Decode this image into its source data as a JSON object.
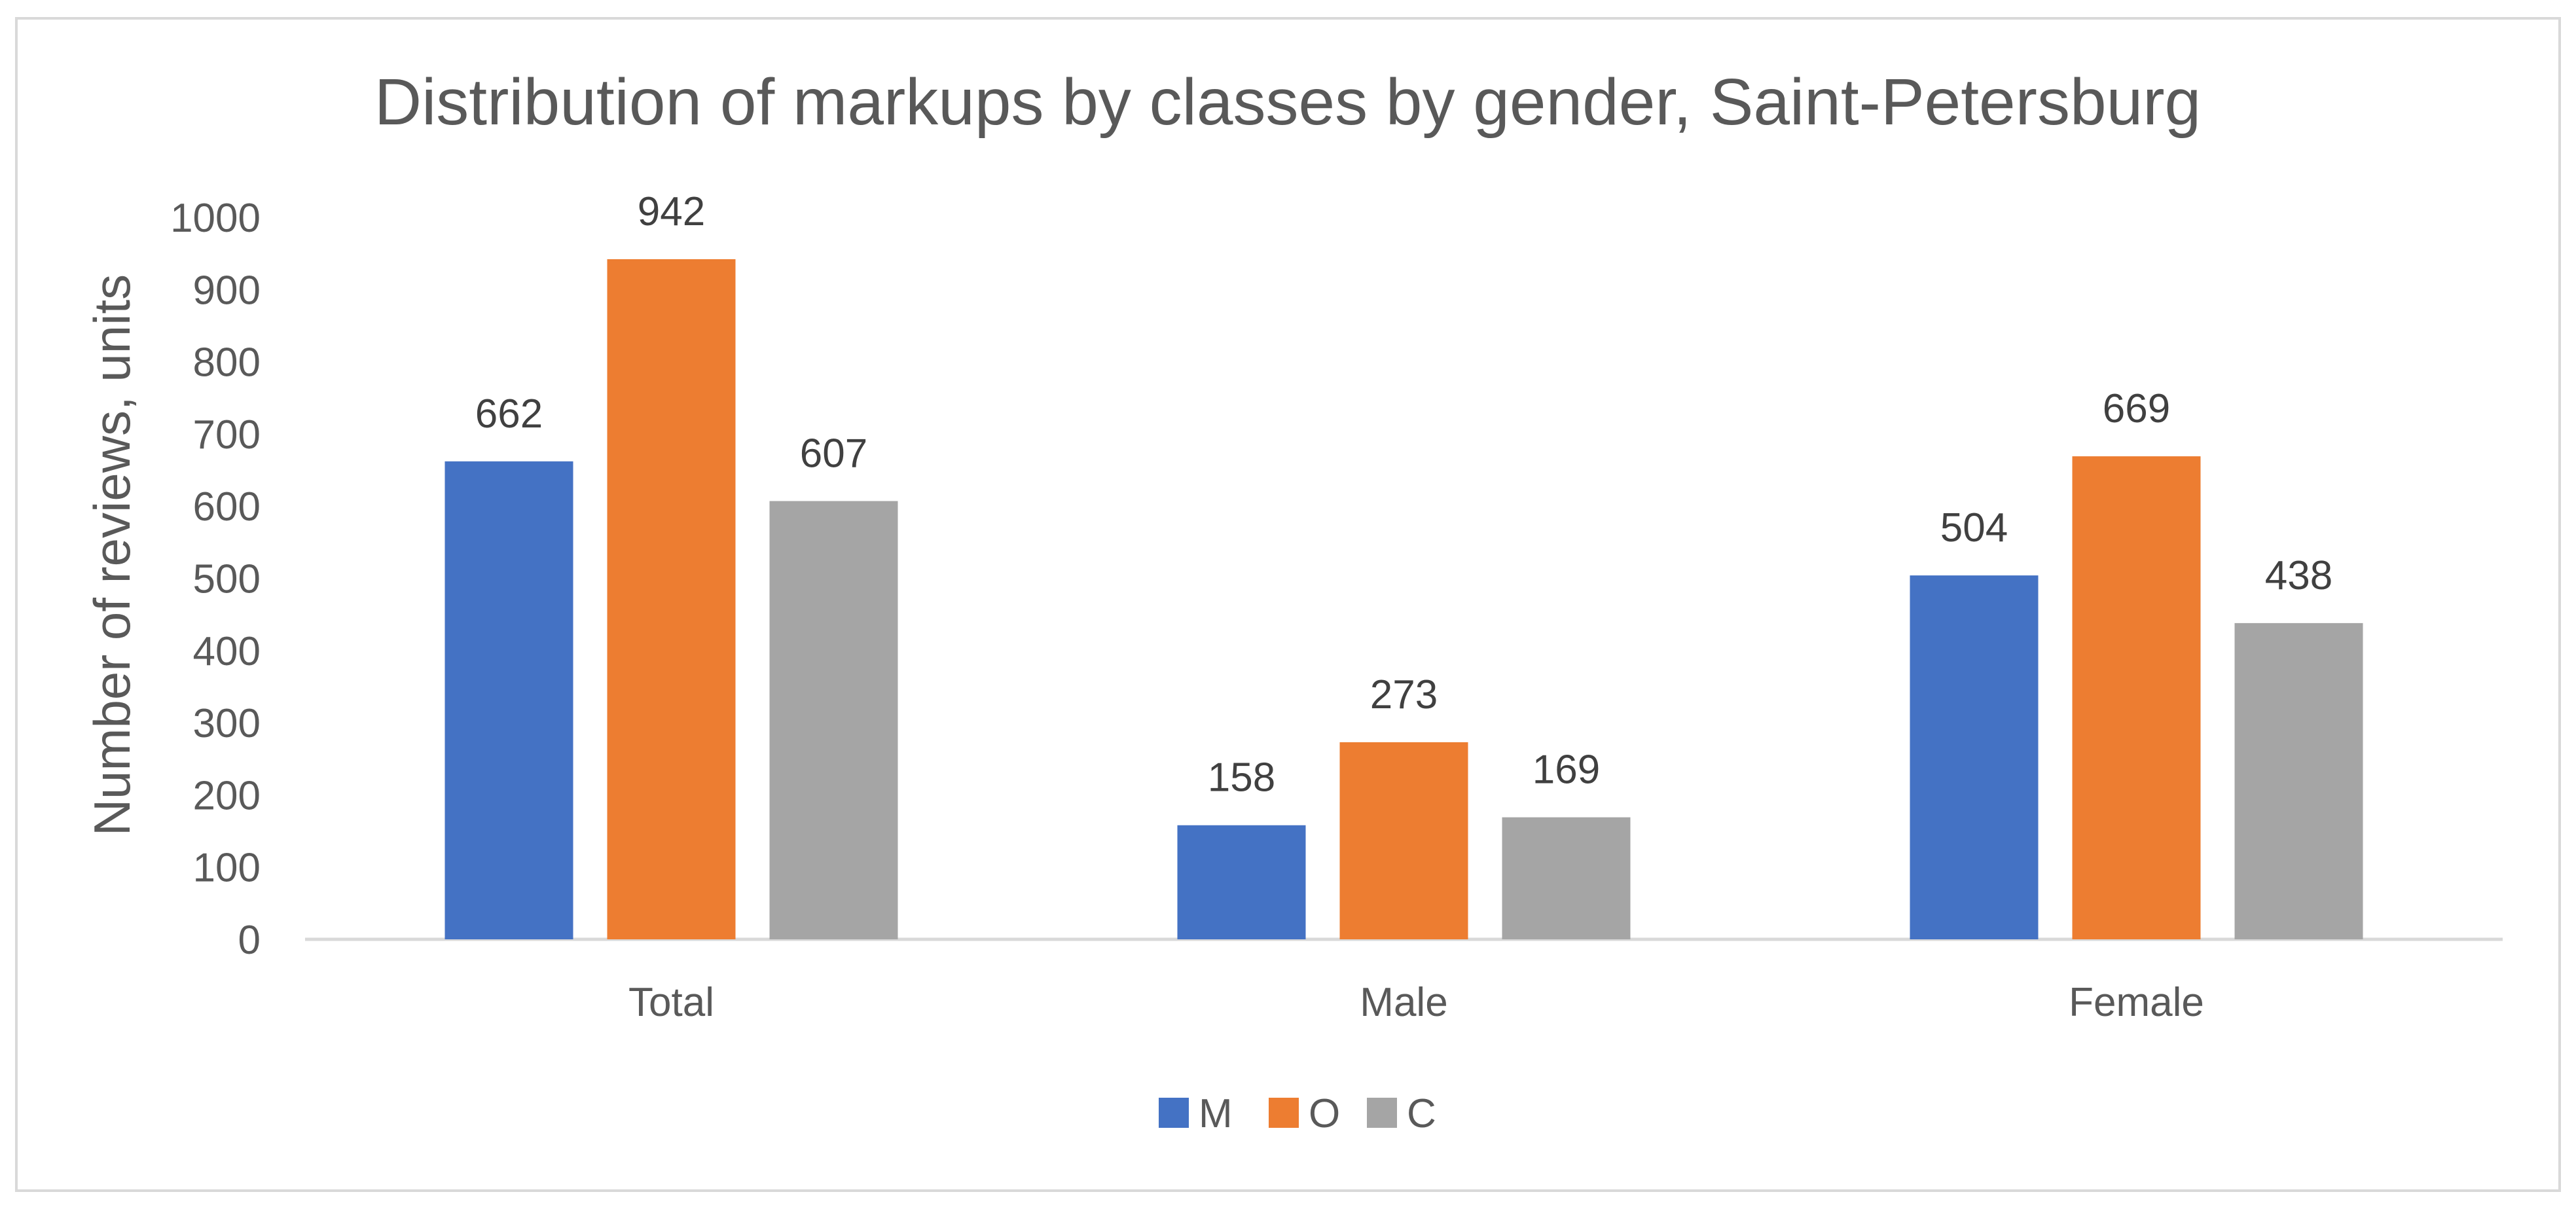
{
  "chart_data": {
    "type": "bar",
    "title": "Distribution of markups by classes by gender, Saint-Petersburg",
    "xlabel": "",
    "ylabel": "Number of reviews, units",
    "categories": [
      "Total",
      "Male",
      "Female"
    ],
    "series": [
      {
        "name": "M",
        "color": "#4472C4",
        "values": [
          662,
          158,
          504
        ]
      },
      {
        "name": "O",
        "color": "#ED7D31",
        "values": [
          942,
          273,
          669
        ]
      },
      {
        "name": "C",
        "color": "#A5A5A5",
        "values": [
          607,
          169,
          438
        ]
      }
    ],
    "ylim": [
      0,
      1000
    ],
    "yticks": [
      0,
      100,
      200,
      300,
      400,
      500,
      600,
      700,
      800,
      900,
      1000
    ],
    "grid": false,
    "legend": "bottom"
  }
}
